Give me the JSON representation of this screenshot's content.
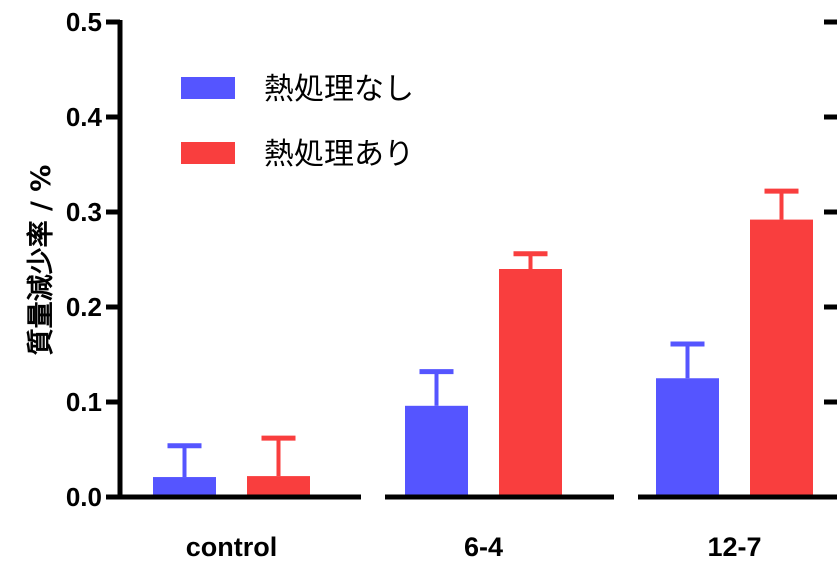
{
  "chart_data": {
    "type": "bar",
    "title": "",
    "xlabel": "",
    "ylabel": "質量減少率 / %",
    "categories": [
      "control",
      "6-4",
      "12-7"
    ],
    "series": [
      {
        "name": "熱処理なし",
        "color": "#5555ff",
        "values": [
          0.021,
          0.096,
          0.125
        ],
        "errors": [
          0.033,
          0.036,
          0.036
        ]
      },
      {
        "name": "熱処理あり",
        "color": "#f93e3e",
        "values": [
          0.022,
          0.24,
          0.292
        ],
        "errors": [
          0.04,
          0.016,
          0.03
        ]
      }
    ],
    "ylim": [
      0,
      0.5
    ],
    "yticks": [
      "0.0",
      "0.1",
      "0.2",
      "0.3",
      "0.4",
      "0.5"
    ],
    "grid": false,
    "legend_position": "top-left"
  }
}
